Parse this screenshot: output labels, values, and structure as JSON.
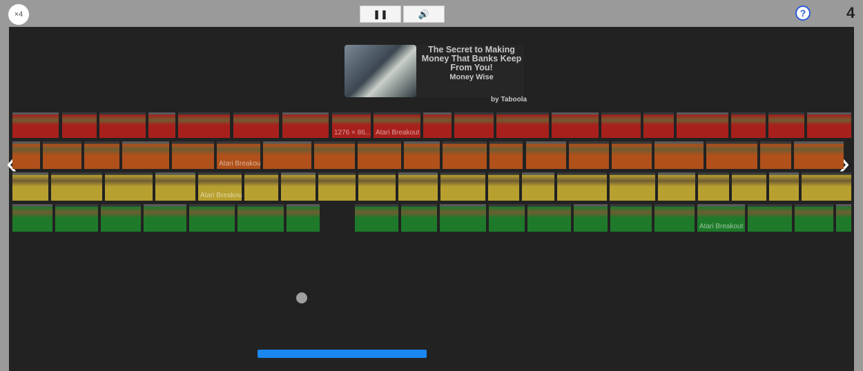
{
  "toolbar": {
    "lives_label": "×4",
    "pause_icon": "pause-icon",
    "sound_icon": "speaker-icon",
    "help_label": "?",
    "score": "4"
  },
  "ad": {
    "title": "The Secret to Making Money That Banks Keep From You!",
    "source": "Money Wise",
    "by": "by Taboola"
  },
  "brick_labels": {
    "size": "1276 × 86...",
    "atari": "Atari Breakout"
  },
  "colors": {
    "red": "#a8201c",
    "orange": "#b0501a",
    "yellow": "#b8a030",
    "green": "#1e7a2a",
    "paddle": "#1a86f0",
    "ball": "#a0a0a0"
  },
  "nav": {
    "prev": "‹",
    "next": "›"
  }
}
